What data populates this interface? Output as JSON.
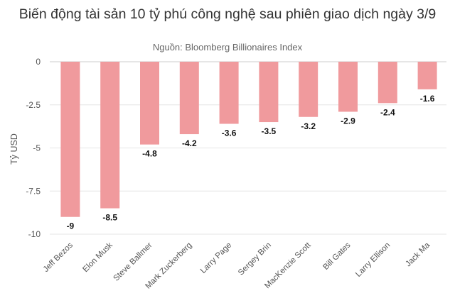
{
  "chart_data": {
    "type": "bar",
    "title": "Biến động tài sản 10 tỷ phú công nghệ sau phiên giao dịch ngày 3/9",
    "subtitle": "Nguồn: Bloomberg Billionaires Index",
    "xlabel": "",
    "ylabel": "Tỷ USD",
    "ylim": [
      -10,
      0
    ],
    "yticks": [
      0,
      -2.5,
      -5,
      -7.5,
      -10
    ],
    "ytick_labels": [
      "0",
      "-2.5",
      "-5",
      "-7.5",
      "-10"
    ],
    "categories": [
      "Jeff Bezos",
      "Elon Musk",
      "Steve Ballmer",
      "Mark Zuckerberg",
      "Larry Page",
      "Sergey Brin",
      "MacKenzie Scott",
      "Bill Gates",
      "Larry Ellison",
      "Jack Ma"
    ],
    "values": [
      -9,
      -8.5,
      -4.8,
      -4.2,
      -3.6,
      -3.5,
      -3.2,
      -2.9,
      -2.4,
      -1.6
    ],
    "data_labels": [
      "-9",
      "-8.5",
      "-4.8",
      "-4.2",
      "-3.6",
      "-3.5",
      "-3.2",
      "-2.9",
      "-2.4",
      "-1.6"
    ],
    "bar_color": "#f09a9d",
    "grid": true
  }
}
